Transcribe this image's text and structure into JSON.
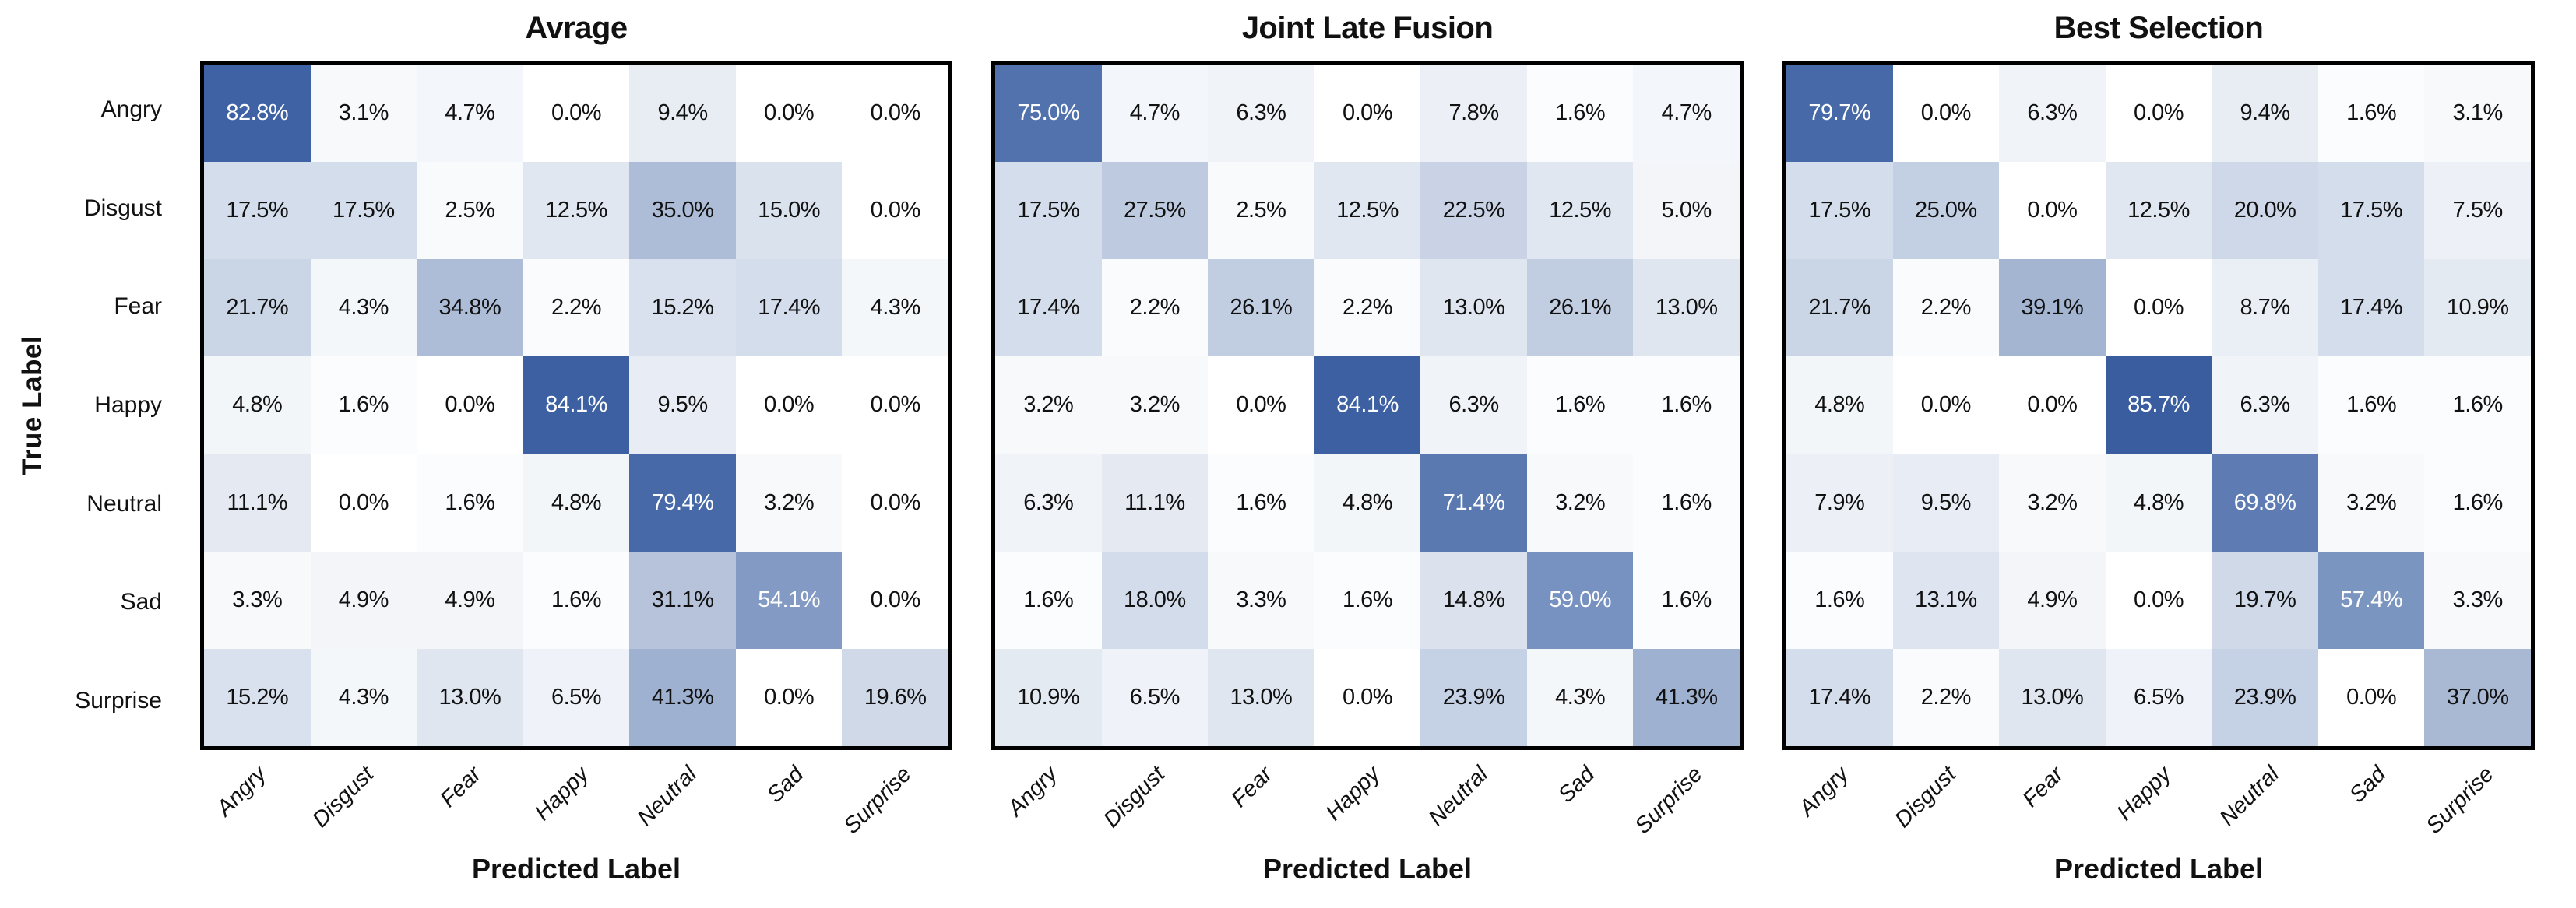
{
  "figure": {
    "ylabel": "True Label",
    "xlabel": "Predicted Label",
    "categories": [
      "Angry",
      "Disgust",
      "Fear",
      "Happy",
      "Neutral",
      "Sad",
      "Surprise"
    ]
  },
  "colors": {
    "background": "#ffffff",
    "border": "#000000",
    "cell_text_dark": "#111111",
    "cell_text_light": "#ffffff",
    "light_text_threshold": 50,
    "value_range": [
      0,
      100
    ],
    "colormap_stops": [
      [
        0,
        "#ffffff"
      ],
      [
        20,
        "#ced8e8"
      ],
      [
        40,
        "#a2b3d1"
      ],
      [
        60,
        "#7590bf"
      ],
      [
        85,
        "#3a5ea1"
      ],
      [
        100,
        "#27457f"
      ]
    ]
  },
  "chart_data": [
    {
      "type": "heatmap",
      "title": "Avrage",
      "xlabel": "Predicted Label",
      "ylabel": "True Label",
      "x_categories": [
        "Angry",
        "Disgust",
        "Fear",
        "Happy",
        "Neutral",
        "Sad",
        "Surprise"
      ],
      "y_categories": [
        "Angry",
        "Disgust",
        "Fear",
        "Happy",
        "Neutral",
        "Sad",
        "Surprise"
      ],
      "unit": "%",
      "legend": "none",
      "grid": false,
      "values": [
        [
          82.8,
          3.1,
          4.7,
          0.0,
          9.4,
          0.0,
          0.0
        ],
        [
          17.5,
          17.5,
          2.5,
          12.5,
          35.0,
          15.0,
          0.0
        ],
        [
          21.7,
          4.3,
          34.8,
          2.2,
          15.2,
          17.4,
          4.3
        ],
        [
          4.8,
          1.6,
          0.0,
          84.1,
          9.5,
          0.0,
          0.0
        ],
        [
          11.1,
          0.0,
          1.6,
          4.8,
          79.4,
          3.2,
          0.0
        ],
        [
          3.3,
          4.9,
          4.9,
          1.6,
          31.1,
          54.1,
          0.0
        ],
        [
          15.2,
          4.3,
          13.0,
          6.5,
          41.3,
          0.0,
          19.6
        ]
      ]
    },
    {
      "type": "heatmap",
      "title": "Joint Late Fusion",
      "xlabel": "Predicted Label",
      "ylabel": "True Label",
      "x_categories": [
        "Angry",
        "Disgust",
        "Fear",
        "Happy",
        "Neutral",
        "Sad",
        "Surprise"
      ],
      "y_categories": [
        "Angry",
        "Disgust",
        "Fear",
        "Happy",
        "Neutral",
        "Sad",
        "Surprise"
      ],
      "unit": "%",
      "legend": "none",
      "grid": false,
      "values": [
        [
          75.0,
          4.7,
          6.3,
          0.0,
          7.8,
          1.6,
          4.7
        ],
        [
          17.5,
          27.5,
          2.5,
          12.5,
          22.5,
          12.5,
          5.0
        ],
        [
          17.4,
          2.2,
          26.1,
          2.2,
          13.0,
          26.1,
          13.0
        ],
        [
          3.2,
          3.2,
          0.0,
          84.1,
          6.3,
          1.6,
          1.6
        ],
        [
          6.3,
          11.1,
          1.6,
          4.8,
          71.4,
          3.2,
          1.6
        ],
        [
          1.6,
          18.0,
          3.3,
          1.6,
          14.8,
          59.0,
          1.6
        ],
        [
          10.9,
          6.5,
          13.0,
          0.0,
          23.9,
          4.3,
          41.3
        ]
      ]
    },
    {
      "type": "heatmap",
      "title": "Best Selection",
      "xlabel": "Predicted Label",
      "ylabel": "True Label",
      "x_categories": [
        "Angry",
        "Disgust",
        "Fear",
        "Happy",
        "Neutral",
        "Sad",
        "Surprise"
      ],
      "y_categories": [
        "Angry",
        "Disgust",
        "Fear",
        "Happy",
        "Neutral",
        "Sad",
        "Surprise"
      ],
      "unit": "%",
      "legend": "none",
      "grid": false,
      "values": [
        [
          79.7,
          0.0,
          6.3,
          0.0,
          9.4,
          1.6,
          3.1
        ],
        [
          17.5,
          25.0,
          0.0,
          12.5,
          20.0,
          17.5,
          7.5
        ],
        [
          21.7,
          2.2,
          39.1,
          0.0,
          8.7,
          17.4,
          10.9
        ],
        [
          4.8,
          0.0,
          0.0,
          85.7,
          6.3,
          1.6,
          1.6
        ],
        [
          7.9,
          9.5,
          3.2,
          4.8,
          69.8,
          3.2,
          1.6
        ],
        [
          1.6,
          13.1,
          4.9,
          0.0,
          19.7,
          57.4,
          3.3
        ],
        [
          17.4,
          2.2,
          13.0,
          6.5,
          23.9,
          0.0,
          37.0
        ]
      ]
    }
  ]
}
